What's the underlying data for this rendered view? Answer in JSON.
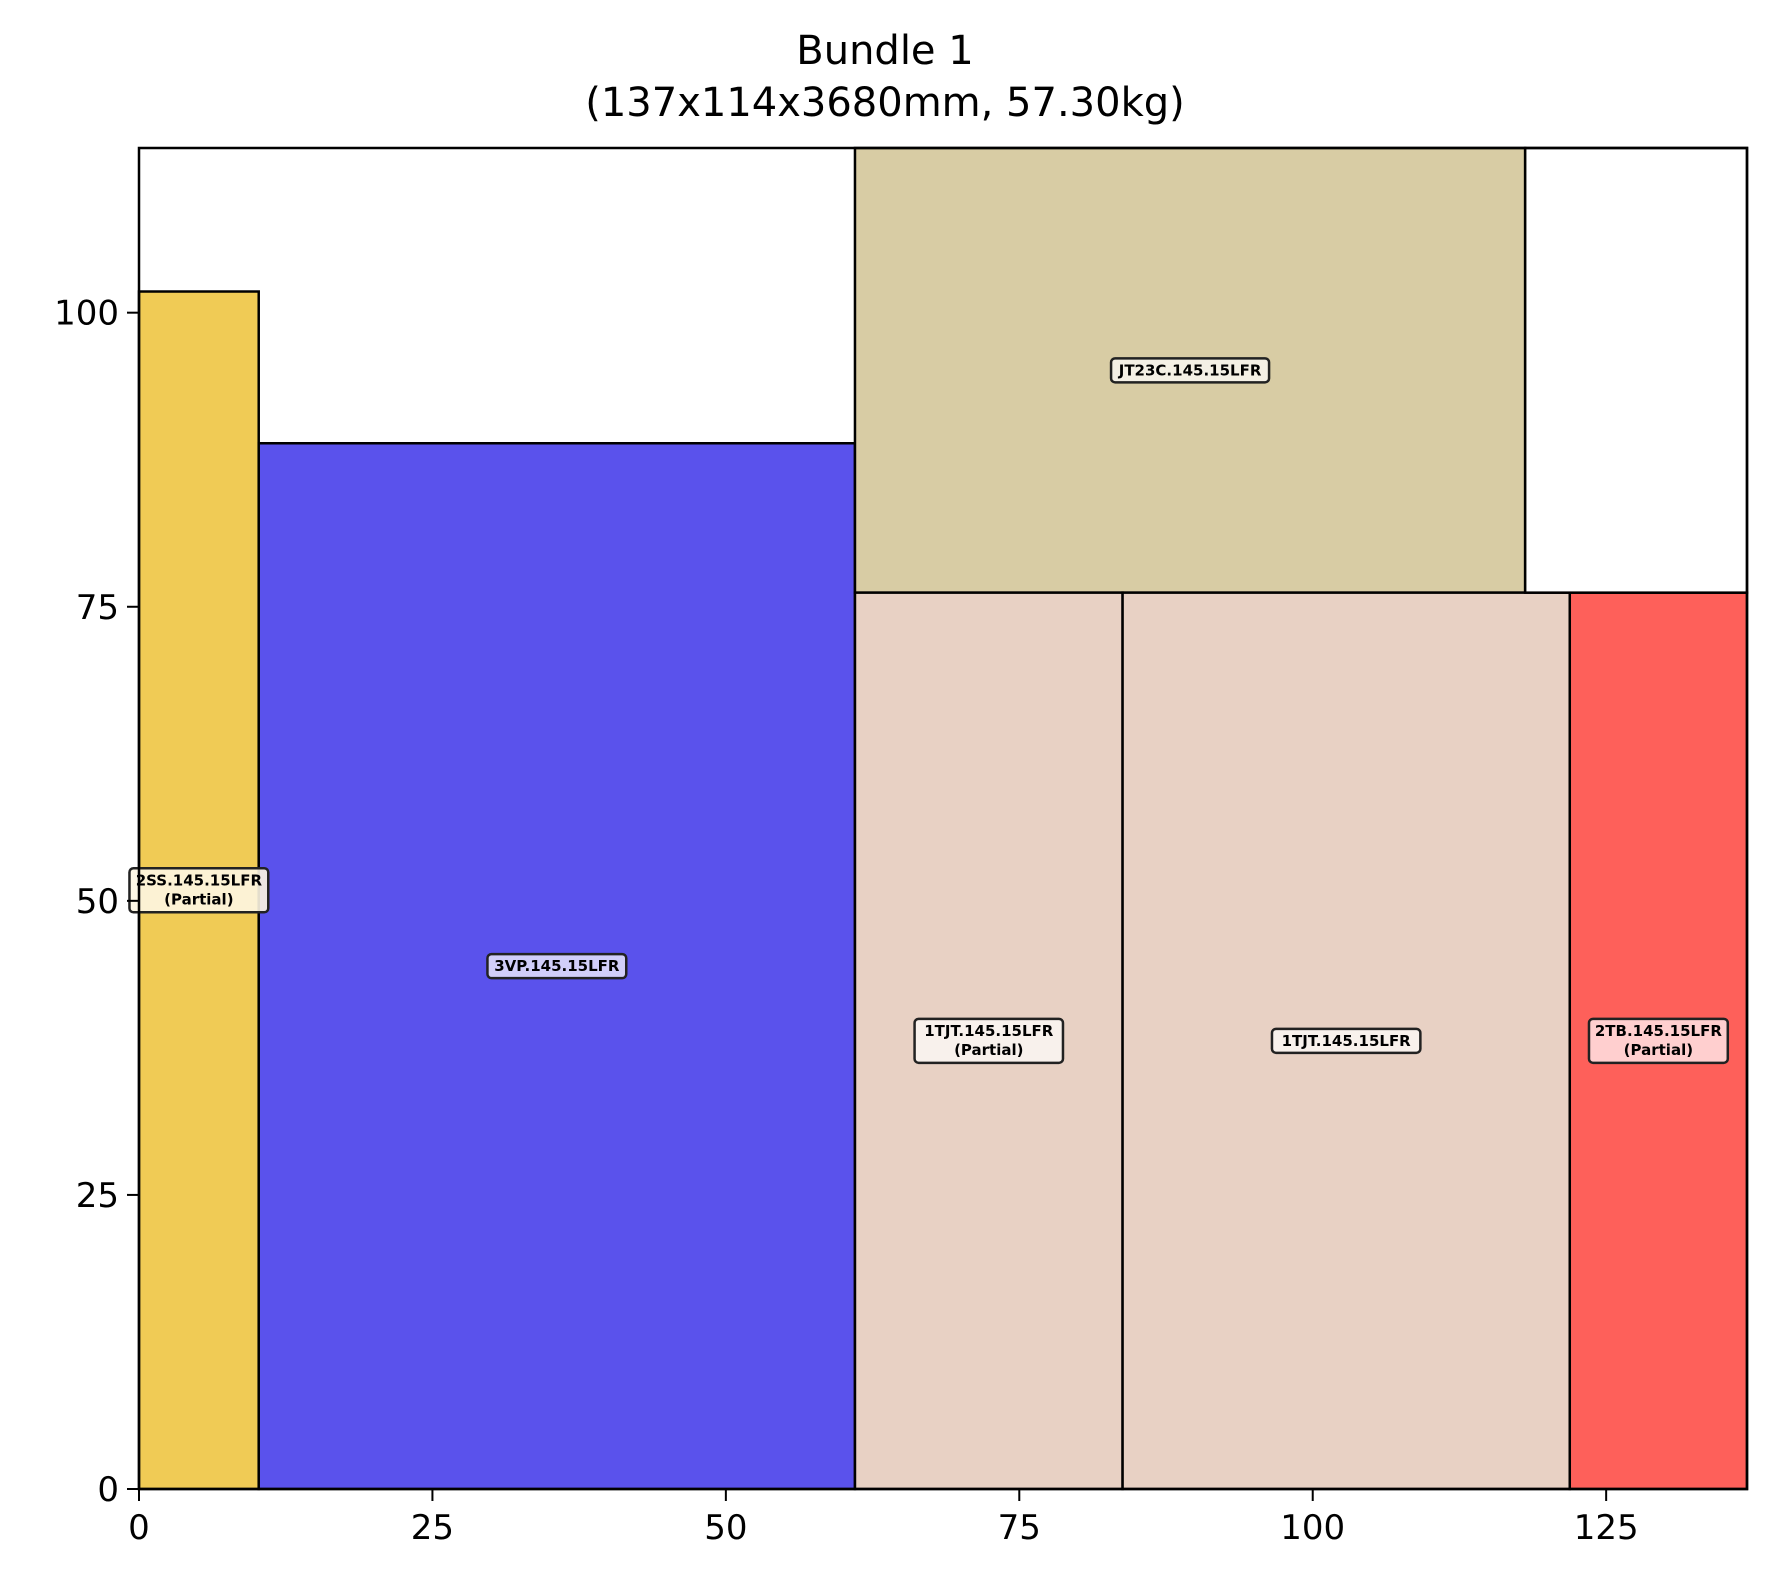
{
  "chart_data": {
    "type": "rectangles",
    "title": "Bundle 1",
    "subtitle": "(137x114x3680mm, 57.30kg)",
    "xlim": [
      0,
      137
    ],
    "ylim": [
      0,
      114
    ],
    "x_ticks": [
      0,
      25,
      50,
      75,
      100,
      125
    ],
    "y_ticks": [
      0,
      25,
      50,
      75,
      100
    ],
    "grid": false,
    "pieces": [
      {
        "label": "2SS.145.15LFR",
        "note": "(Partial)",
        "x0": 0,
        "x1": 10.2,
        "y0": 0,
        "y1": 101.8,
        "color": "#f0cb55",
        "label_fill": "#fdf6e2"
      },
      {
        "label": "3VP.145.15LFR",
        "note": "",
        "x0": 10.2,
        "x1": 61.0,
        "y0": 0,
        "y1": 88.9,
        "color": "#5a52ec",
        "label_fill": "#dedcfb"
      },
      {
        "label": "JT23C.145.15LFR",
        "note": "",
        "x0": 61.0,
        "x1": 118.1,
        "y0": 76.2,
        "y1": 114,
        "color": "#d8cca4",
        "label_fill": "#f7f4ec"
      },
      {
        "label": "1TJT.145.15LFR",
        "note": "(Partial)",
        "x0": 61.0,
        "x1": 83.8,
        "y0": 0,
        "y1": 76.2,
        "color": "#e8d1c4",
        "label_fill": "#faf4f1"
      },
      {
        "label": "1TJT.145.15LFR",
        "note": "",
        "x0": 83.8,
        "x1": 121.9,
        "y0": 0,
        "y1": 76.2,
        "color": "#e8d1c4",
        "label_fill": "#faf4f1"
      },
      {
        "label": "2TB.145.15LFR",
        "note": "(Partial)",
        "x0": 121.9,
        "x1": 137,
        "y0": 0,
        "y1": 76.2,
        "color": "#fe605a",
        "label_fill": "#ffdcdb"
      },
      {
        "label": "",
        "note": "",
        "x0": 118.1,
        "x1": 137,
        "y0": 76.2,
        "y1": 114,
        "color": "#ffffff",
        "label_fill": "#ffffff"
      }
    ]
  }
}
